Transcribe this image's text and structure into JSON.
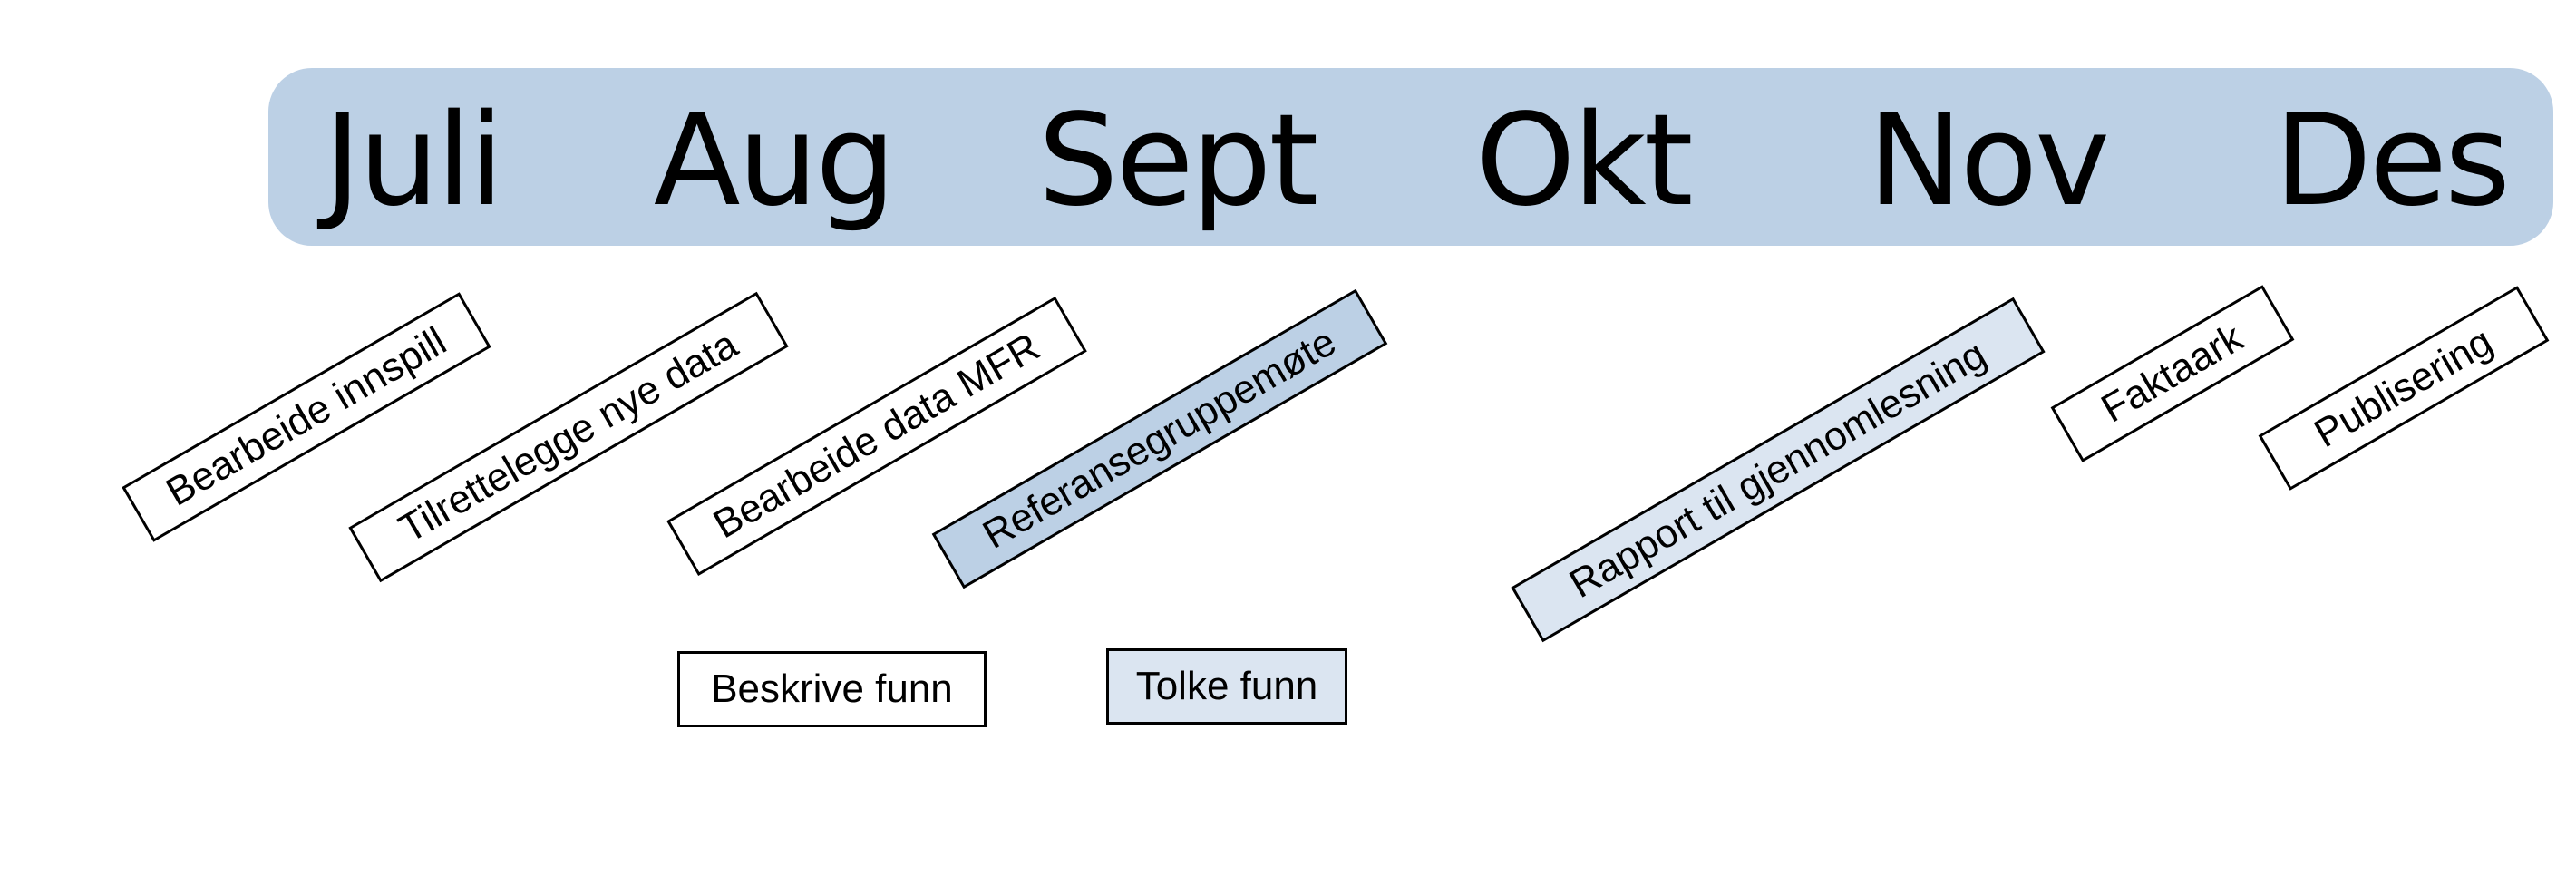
{
  "months": [
    "Juli",
    "Aug",
    "Sept",
    "Okt",
    "Nov",
    "Des"
  ],
  "tasks": {
    "bearbeide_innspill": "Bearbeide innspill",
    "tilrettelegge_nye_data": "Tilrettelegge nye data",
    "bearbeide_data_mfr": "Bearbeide data MFR",
    "referansegruppemote": "Referansegruppemøte",
    "rapport_til_gjennomlesning": "Rapport til gjennomlesning",
    "faktaark": "Faktaark",
    "publisering": "Publisering",
    "beskrive_funn": "Beskrive funn",
    "tolke_funn": "Tolke funn"
  },
  "colors": {
    "month_bar": "#bcd0e5",
    "highlight_strong": "#bcd0e5",
    "highlight_light": "#dbe5f1",
    "border": "#000000"
  }
}
